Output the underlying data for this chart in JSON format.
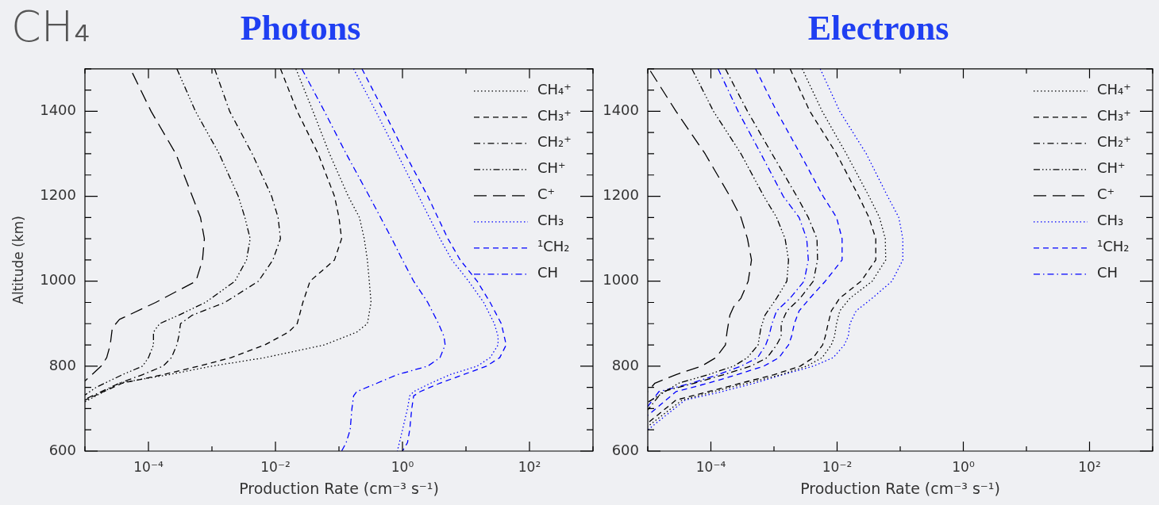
{
  "chart_data": [
    {
      "type": "line",
      "title": "Photons",
      "xlabel": "Production Rate (cm⁻³ s⁻¹)",
      "ylabel": "Altitude (km)",
      "annotations": [
        "CH₄"
      ],
      "log": "x",
      "legend": "top right",
      "marker": "none",
      "grid": false,
      "xlim": [
        1e-05,
        1000
      ],
      "ylim": [
        600,
        1500
      ],
      "xticks": [
        {
          "value": 1e-05,
          "label": null
        },
        {
          "value": 0.0001,
          "label": "10⁻⁴"
        },
        {
          "value": 0.001,
          "label": null
        },
        {
          "value": 0.01,
          "label": "10⁻²"
        },
        {
          "value": 0.1,
          "label": null
        },
        {
          "value": 1,
          "label": "10⁰"
        },
        {
          "value": 10,
          "label": null
        },
        {
          "value": 100,
          "label": "10²"
        },
        {
          "value": 1000,
          "label": null
        }
      ],
      "yticks": [
        600,
        {
          "value": 650,
          "label": null
        },
        {
          "value": 700,
          "label": null
        },
        {
          "value": 750,
          "label": null
        },
        800,
        {
          "value": 850,
          "label": null
        },
        {
          "value": 900,
          "label": null
        },
        {
          "value": 950,
          "label": null
        },
        1000,
        {
          "value": 1050,
          "label": null
        },
        {
          "value": 1100,
          "label": null
        },
        {
          "value": 1150,
          "label": null
        },
        1200,
        {
          "value": 1250,
          "label": null
        },
        {
          "value": 1300,
          "label": null
        },
        {
          "value": 1350,
          "label": null
        },
        1400,
        {
          "value": 1450,
          "label": null
        },
        {
          "value": 1500,
          "label": null
        }
      ],
      "series": [
        {
          "name": "CH₄⁺",
          "color": "#000000",
          "line_style": "dotted",
          "x": [
            0.021,
            0.039,
            0.071,
            0.14,
            0.21,
            0.25,
            0.28,
            0.3,
            0.32,
            0.28,
            0.19,
            0.059,
            0.0068,
            0.001,
            0.00021,
            3.5e-05,
            1e-05
          ],
          "values": [
            1500,
            1400,
            1300,
            1200,
            1150,
            1100,
            1050,
            1000,
            950,
            900,
            880,
            850,
            820,
            800,
            780,
            760,
            716
          ]
        },
        {
          "name": "CH₃⁺",
          "color": "#000000",
          "line_style": "dashed",
          "x": [
            0.012,
            0.022,
            0.047,
            0.085,
            0.1,
            0.11,
            0.085,
            0.035,
            0.027,
            0.022,
            0.016,
            0.0068,
            0.002,
            0.00062,
            0.00017,
            3.9e-05,
            1e-05
          ],
          "values": [
            1500,
            1400,
            1300,
            1200,
            1150,
            1100,
            1050,
            1000,
            950,
            900,
            880,
            850,
            820,
            800,
            780,
            760,
            720
          ]
        },
        {
          "name": "CH₂⁺",
          "color": "#000000",
          "line_style": "dashdot",
          "x": [
            0.0011,
            0.0019,
            0.0043,
            0.0087,
            0.011,
            0.012,
            0.0091,
            0.0054,
            0.0016,
            0.00049,
            0.00032,
            0.0003,
            0.00028,
            0.00023,
            0.00017,
            8.1e-05,
            3.5e-05,
            1e-05
          ],
          "values": [
            1500,
            1400,
            1300,
            1200,
            1150,
            1100,
            1050,
            1000,
            950,
            920,
            900,
            870,
            850,
            820,
            800,
            780,
            760,
            722
          ]
        },
        {
          "name": "CH⁺",
          "color": "#000000",
          "line_style": "dashdotdot",
          "x": [
            0.00028,
            0.00055,
            0.0013,
            0.0026,
            0.0033,
            0.004,
            0.0035,
            0.0023,
            0.00079,
            0.0003,
            0.00015,
            0.00012,
            0.00012,
            0.0001,
            8.1e-05,
            3.9e-05,
            1.5e-05,
            1e-05
          ],
          "values": [
            1500,
            1400,
            1300,
            1200,
            1150,
            1100,
            1050,
            1000,
            950,
            920,
            900,
            880,
            850,
            820,
            800,
            780,
            750,
            732
          ]
        },
        {
          "name": "C⁺",
          "color": "#000000",
          "line_style": "longdash",
          "x": [
            5.6e-05,
            0.00011,
            0.00027,
            0.00049,
            0.00066,
            0.00076,
            0.00071,
            0.00056,
            0.00013,
            3.5e-05,
            2.7e-05,
            2.5e-05,
            2.2e-05,
            1.8e-05,
            1e-05
          ],
          "values": [
            1490,
            1400,
            1300,
            1200,
            1150,
            1100,
            1050,
            1000,
            950,
            910,
            890,
            850,
            820,
            800,
            765
          ]
        },
        {
          "name": "CH₃",
          "color": "#0000ff",
          "line_style": "dotted",
          "x": [
            0.17,
            0.38,
            0.83,
            1.8,
            3.9,
            6.0,
            11,
            19,
            28,
            32,
            32,
            24,
            15,
            5.6,
            2.8,
            1.5,
            1.3,
            1.2,
            1.0,
            0.83
          ],
          "values": [
            1500,
            1400,
            1300,
            1200,
            1100,
            1050,
            1000,
            950,
            900,
            870,
            850,
            820,
            800,
            780,
            760,
            740,
            730,
            700,
            650,
            600
          ]
        },
        {
          "name": "¹CH₂",
          "color": "#0000ff",
          "line_style": "dashed",
          "x": [
            0.23,
            0.51,
            1.1,
            2.5,
            5.2,
            8.1,
            15,
            24,
            36,
            43,
            34,
            21,
            9.1,
            3.9,
            1.9,
            1.5,
            1.4,
            1.3,
            1.2,
            1.0
          ],
          "values": [
            1500,
            1400,
            1300,
            1200,
            1100,
            1050,
            1000,
            950,
            900,
            850,
            820,
            800,
            780,
            760,
            740,
            730,
            700,
            650,
            620,
            600
          ]
        },
        {
          "name": "CH",
          "color": "#0000ff",
          "line_style": "dashdot",
          "x": [
            0.026,
            0.059,
            0.13,
            0.3,
            0.68,
            1.0,
            1.5,
            2.5,
            3.7,
            4.5,
            4.7,
            3.9,
            2.5,
            0.83,
            0.4,
            0.19,
            0.17,
            0.16,
            0.15,
            0.13,
            0.11
          ],
          "values": [
            1500,
            1400,
            1300,
            1200,
            1100,
            1050,
            1000,
            950,
            900,
            870,
            850,
            820,
            800,
            780,
            760,
            740,
            730,
            700,
            650,
            620,
            600
          ]
        }
      ]
    },
    {
      "type": "line",
      "title": "Electrons",
      "xlabel": "Production Rate (cm⁻³ s⁻¹)",
      "log": "x",
      "legend": "top right",
      "marker": "none",
      "grid": false,
      "xlim": [
        1e-05,
        1000
      ],
      "ylim": [
        600,
        1500
      ],
      "xticks": [
        {
          "value": 1e-05,
          "label": null
        },
        {
          "value": 0.0001,
          "label": "10⁻⁴"
        },
        {
          "value": 0.001,
          "label": null
        },
        {
          "value": 0.01,
          "label": "10⁻²"
        },
        {
          "value": 0.1,
          "label": null
        },
        {
          "value": 1,
          "label": "10⁰"
        },
        {
          "value": 10,
          "label": null
        },
        {
          "value": 100,
          "label": "10²"
        },
        {
          "value": 1000,
          "label": null
        }
      ],
      "yticks": [
        600,
        {
          "value": 650,
          "label": null
        },
        {
          "value": 700,
          "label": null
        },
        {
          "value": 750,
          "label": null
        },
        800,
        {
          "value": 850,
          "label": null
        },
        {
          "value": 900,
          "label": null
        },
        {
          "value": 950,
          "label": null
        },
        1000,
        {
          "value": 1050,
          "label": null
        },
        {
          "value": 1100,
          "label": null
        },
        {
          "value": 1150,
          "label": null
        },
        1200,
        {
          "value": 1250,
          "label": null
        },
        {
          "value": 1300,
          "label": null
        },
        {
          "value": 1350,
          "label": null
        },
        1400,
        {
          "value": 1450,
          "label": null
        },
        {
          "value": 1500,
          "label": null
        }
      ],
      "series": [
        {
          "name": "CH₄⁺",
          "color": "#000000",
          "line_style": "dotted",
          "x": [
            0.0028,
            0.0058,
            0.014,
            0.032,
            0.047,
            0.058,
            0.059,
            0.036,
            0.016,
            0.011,
            0.0098,
            0.0091,
            0.0081,
            0.0058,
            0.0033,
            0.0013,
            0.00038,
            0.00011,
            3.5e-05,
            1e-05
          ],
          "values": [
            1500,
            1400,
            1300,
            1200,
            1150,
            1100,
            1050,
            1000,
            960,
            930,
            900,
            870,
            850,
            820,
            800,
            780,
            760,
            740,
            720,
            658
          ]
        },
        {
          "name": "CH₃⁺",
          "color": "#000000",
          "line_style": "dashed",
          "x": [
            0.0018,
            0.0037,
            0.0098,
            0.022,
            0.032,
            0.041,
            0.041,
            0.024,
            0.011,
            0.0081,
            0.0072,
            0.0065,
            0.0059,
            0.0042,
            0.0026,
            0.001,
            0.0003,
            9.1e-05,
            2.8e-05,
            1e-05
          ],
          "values": [
            1500,
            1400,
            1300,
            1200,
            1150,
            1100,
            1050,
            1000,
            960,
            930,
            900,
            870,
            850,
            820,
            800,
            780,
            760,
            740,
            720,
            666
          ]
        },
        {
          "name": "CH₂⁺",
          "color": "#000000",
          "line_style": "dashdot",
          "x": [
            0.00017,
            0.00038,
            0.00093,
            0.0023,
            0.0035,
            0.0048,
            0.0049,
            0.0042,
            0.0026,
            0.0016,
            0.0013,
            0.0013,
            0.0011,
            0.00078,
            0.00043,
            0.00016,
            5.5e-05,
            1.7e-05,
            1e-05
          ],
          "values": [
            1500,
            1400,
            1300,
            1200,
            1150,
            1100,
            1050,
            1000,
            960,
            930,
            900,
            870,
            850,
            820,
            800,
            780,
            760,
            740,
            697
          ]
        },
        {
          "name": "CH⁺",
          "color": "#000000",
          "line_style": "dashdotdot",
          "x": [
            5e-05,
            0.00011,
            0.0003,
            0.00069,
            0.0011,
            0.0015,
            0.0017,
            0.0016,
            0.0011,
            0.00072,
            0.00062,
            0.00056,
            0.00038,
            0.00023,
            9.1e-05,
            3.1e-05,
            1e-05
          ],
          "values": [
            1500,
            1400,
            1300,
            1200,
            1150,
            1100,
            1050,
            1000,
            960,
            920,
            890,
            850,
            820,
            800,
            780,
            760,
            715
          ]
        },
        {
          "name": "C⁺",
          "color": "#000000",
          "line_style": "longdash",
          "x": [
            1.1e-05,
            2.8e-05,
            8.1e-05,
            0.0002,
            0.0003,
            0.00038,
            0.00044,
            0.00039,
            0.0003,
            0.00023,
            0.0002,
            0.00018,
            0.00017,
            0.00012,
            7.1e-05,
            2.8e-05,
            1.3e-05,
            1e-05
          ],
          "values": [
            1495,
            1400,
            1300,
            1200,
            1150,
            1100,
            1050,
            1000,
            960,
            940,
            920,
            880,
            850,
            820,
            800,
            780,
            760,
            740
          ]
        },
        {
          "name": "CH₃",
          "color": "#0000ff",
          "line_style": "dotted",
          "x": [
            0.0054,
            0.011,
            0.029,
            0.063,
            0.095,
            0.11,
            0.11,
            0.074,
            0.036,
            0.02,
            0.016,
            0.015,
            0.013,
            0.0087,
            0.0042,
            0.0014,
            0.00049,
            0.00015,
            3.9e-05,
            1e-05
          ],
          "values": [
            1500,
            1400,
            1300,
            1200,
            1150,
            1100,
            1050,
            1000,
            960,
            930,
            900,
            870,
            850,
            820,
            800,
            780,
            760,
            740,
            720,
            650
          ]
        },
        {
          "name": "¹CH₂",
          "color": "#0000ff",
          "line_style": "dashed",
          "x": [
            0.00051,
            0.0011,
            0.0026,
            0.006,
            0.0098,
            0.012,
            0.012,
            0.0065,
            0.0037,
            0.0025,
            0.0021,
            0.0019,
            0.0017,
            0.0012,
            0.00069,
            0.00026,
            9.1e-05,
            2.8e-05,
            1e-05
          ],
          "values": [
            1500,
            1400,
            1300,
            1200,
            1150,
            1100,
            1050,
            1000,
            960,
            930,
            900,
            870,
            850,
            820,
            800,
            780,
            760,
            740,
            684
          ]
        },
        {
          "name": "CH",
          "color": "#0000ff",
          "line_style": "dashdot",
          "x": [
            0.00013,
            0.00027,
            0.00062,
            0.0014,
            0.0025,
            0.0033,
            0.0035,
            0.003,
            0.0018,
            0.0011,
            0.00093,
            0.00083,
            0.00074,
            0.00055,
            0.0003,
            0.00013,
            5e-05,
            1.5e-05,
            1e-05
          ],
          "values": [
            1500,
            1400,
            1300,
            1200,
            1150,
            1100,
            1050,
            1000,
            960,
            930,
            900,
            870,
            850,
            820,
            800,
            780,
            760,
            740,
            705
          ]
        }
      ]
    }
  ]
}
